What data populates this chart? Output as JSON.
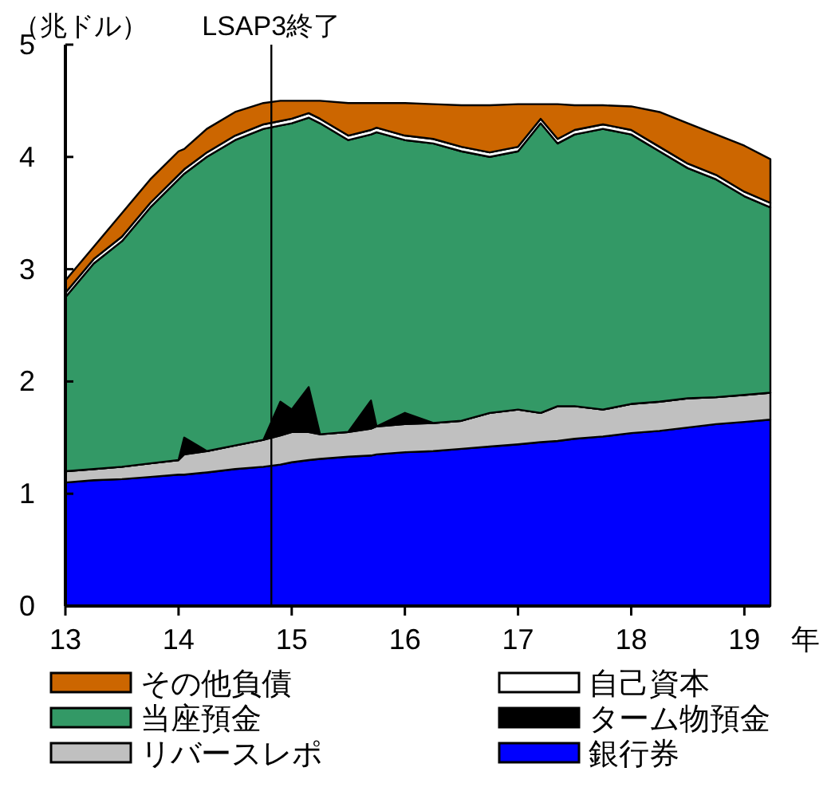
{
  "chart_data": {
    "type": "area",
    "stacked": true,
    "ylabel": "（兆ドル）",
    "xlabel": "年",
    "x": [
      13,
      13.25,
      13.5,
      13.75,
      14,
      14.05,
      14.25,
      14.5,
      14.75,
      14.9,
      15,
      15.15,
      15.25,
      15.5,
      15.7,
      15.75,
      16,
      16.25,
      16.5,
      16.75,
      17,
      17.2,
      17.35,
      17.5,
      17.75,
      18,
      18.25,
      18.5,
      18.75,
      19,
      19.23
    ],
    "xlim": [
      13,
      19.23
    ],
    "xticks": [
      13,
      14,
      15,
      16,
      17,
      18,
      19
    ],
    "ylim": [
      0,
      5
    ],
    "yticks": [
      0,
      1,
      2,
      3,
      4,
      5
    ],
    "legend": "bottom",
    "grid": false,
    "ref_lines": [
      {
        "axis": "x",
        "value": 14.82,
        "label": "LSAP3終了",
        "color": "#000000"
      }
    ],
    "series": [
      {
        "name": "銀行券",
        "color": "#0000ff",
        "values": [
          1.1,
          1.12,
          1.13,
          1.15,
          1.17,
          1.17,
          1.19,
          1.22,
          1.24,
          1.26,
          1.28,
          1.3,
          1.31,
          1.33,
          1.34,
          1.35,
          1.37,
          1.38,
          1.4,
          1.42,
          1.44,
          1.46,
          1.47,
          1.49,
          1.51,
          1.54,
          1.56,
          1.59,
          1.62,
          1.64,
          1.66
        ]
      },
      {
        "name": "リバースレポ",
        "color": "#c0c0c0",
        "values": [
          0.1,
          0.1,
          0.11,
          0.12,
          0.13,
          0.18,
          0.19,
          0.21,
          0.24,
          0.26,
          0.27,
          0.25,
          0.22,
          0.22,
          0.24,
          0.25,
          0.25,
          0.25,
          0.25,
          0.3,
          0.31,
          0.26,
          0.31,
          0.29,
          0.24,
          0.26,
          0.26,
          0.26,
          0.24,
          0.24,
          0.24
        ]
      },
      {
        "name": "ターム物預金",
        "color": "#000000",
        "values": [
          0,
          0,
          0,
          0,
          0,
          0.15,
          0,
          0,
          0,
          0.3,
          0.2,
          0.4,
          0,
          0,
          0.25,
          0,
          0.1,
          0,
          0,
          0,
          0,
          0,
          0,
          0,
          0,
          0,
          0,
          0,
          0,
          0,
          0
        ]
      },
      {
        "name": "当座預金",
        "color": "#339966",
        "values": [
          1.55,
          1.83,
          2.01,
          2.28,
          2.5,
          2.35,
          2.62,
          2.72,
          2.77,
          2.46,
          2.55,
          2.4,
          2.77,
          2.6,
          2.37,
          2.62,
          2.43,
          2.49,
          2.4,
          2.28,
          2.3,
          2.58,
          2.34,
          2.42,
          2.5,
          2.4,
          2.23,
          2.05,
          1.94,
          1.77,
          1.65
        ]
      },
      {
        "name": "自己資本",
        "color": "#ffffff",
        "values": [
          0.04,
          0.04,
          0.04,
          0.04,
          0.04,
          0.04,
          0.04,
          0.04,
          0.04,
          0.04,
          0.04,
          0.04,
          0.04,
          0.04,
          0.04,
          0.04,
          0.04,
          0.04,
          0.04,
          0.04,
          0.04,
          0.04,
          0.04,
          0.04,
          0.04,
          0.04,
          0.04,
          0.04,
          0.04,
          0.04,
          0.04
        ]
      },
      {
        "name": "その他負債",
        "color": "#cc6600",
        "values": [
          0.11,
          0.11,
          0.21,
          0.21,
          0.21,
          0.18,
          0.21,
          0.21,
          0.19,
          0.18,
          0.16,
          0.11,
          0.16,
          0.29,
          0.24,
          0.22,
          0.29,
          0.31,
          0.37,
          0.42,
          0.38,
          0.13,
          0.31,
          0.22,
          0.17,
          0.21,
          0.31,
          0.36,
          0.36,
          0.41,
          0.39
        ]
      }
    ]
  }
}
